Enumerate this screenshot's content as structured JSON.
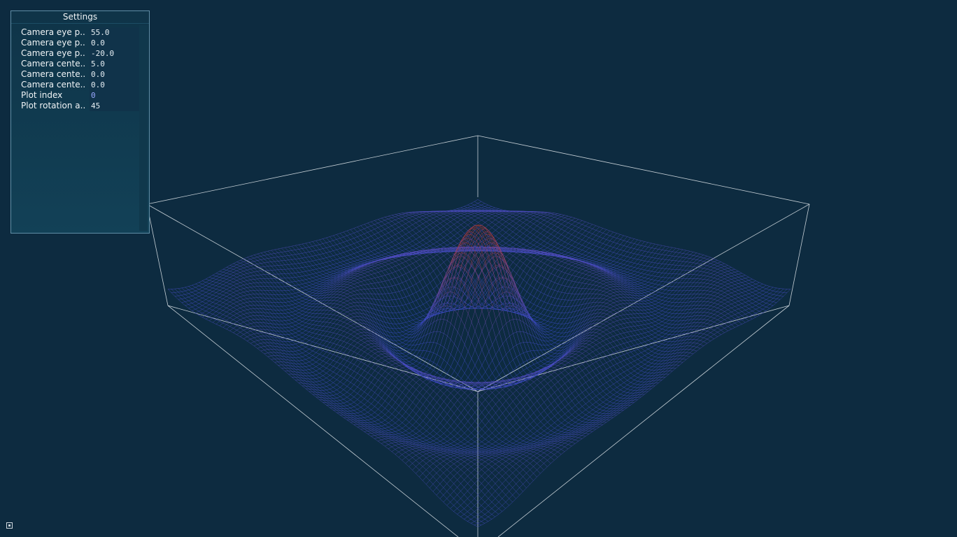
{
  "settings": {
    "title": "Settings",
    "rows": [
      {
        "label": "Camera eye p..",
        "value": "55.0"
      },
      {
        "label": "Camera eye p..",
        "value": "0.0"
      },
      {
        "label": "Camera eye p..",
        "value": "-20.0"
      },
      {
        "label": "Camera cente..",
        "value": "5.0"
      },
      {
        "label": "Camera cente..",
        "value": "0.0"
      },
      {
        "label": "Camera cente..",
        "value": "0.0"
      },
      {
        "label": "Plot index",
        "value": "0"
      },
      {
        "label": "Plot rotation a..",
        "value": "45"
      }
    ]
  },
  "plot": {
    "surface": "sinc ripple",
    "color_low": "#3d4fd6",
    "color_high": "#e03a26",
    "box_color": "#e6ecf0",
    "background": "#0d2b40"
  },
  "icons": {
    "corner": "window-toggle-icon"
  }
}
